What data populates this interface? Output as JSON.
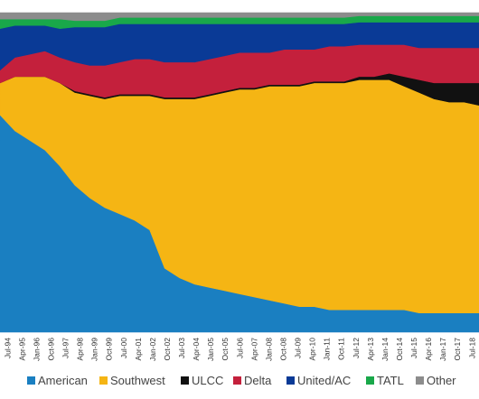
{
  "chart_data": {
    "type": "area",
    "stacked": true,
    "normalized": true,
    "title": "",
    "xlabel": "",
    "ylabel": "",
    "ylim": [
      0,
      100
    ],
    "grid": false,
    "legend_position": "bottom",
    "x": [
      "Jul-94",
      "Apr-95",
      "Jan-96",
      "Oct-96",
      "Jul-97",
      "Apr-98",
      "Jan-99",
      "Oct-99",
      "Jul-00",
      "Apr-01",
      "Jan-02",
      "Oct-02",
      "Jul-03",
      "Apr-04",
      "Jan-05",
      "Oct-05",
      "Jul-06",
      "Apr-07",
      "Jan-08",
      "Oct-08",
      "Jul-09",
      "Apr-10",
      "Jan-11",
      "Oct-11",
      "Jul-12",
      "Apr-13",
      "Jan-14",
      "Oct-14",
      "Jul-15",
      "Apr-16",
      "Jan-17",
      "Oct-17",
      "Jul-18"
    ],
    "series": [
      {
        "name": "American",
        "color": "#1a7fc1",
        "values": [
          68,
          63,
          60,
          57,
          52,
          46,
          42,
          39,
          37,
          35,
          32,
          20,
          17,
          15,
          14,
          13,
          12,
          11,
          10,
          9,
          8,
          8,
          7,
          7,
          7,
          7,
          7,
          7,
          6,
          6,
          6,
          6,
          6
        ]
      },
      {
        "name": "Southwest",
        "color": "#f5b514",
        "values": [
          10,
          17,
          20,
          23,
          26,
          29,
          32,
          34,
          37,
          39,
          42,
          53,
          56,
          58,
          60,
          62,
          64,
          65,
          67,
          68,
          69,
          70,
          71,
          71,
          72,
          72,
          72,
          70,
          69,
          67,
          66,
          66,
          65
        ]
      },
      {
        "name": "ULCC",
        "color": "#111111",
        "values": [
          0,
          0,
          0,
          0,
          0,
          0.5,
          0.5,
          0.5,
          0.5,
          0.5,
          0.5,
          0.5,
          0.5,
          0.5,
          0.5,
          0.5,
          0.5,
          0.5,
          0.5,
          0.5,
          0.5,
          0.5,
          0.5,
          0.5,
          1,
          1,
          2,
          3,
          4,
          5,
          6,
          6,
          7
        ]
      },
      {
        "name": "Delta",
        "color": "#c4203c",
        "values": [
          4,
          6,
          7,
          8,
          8,
          9,
          9,
          10,
          10,
          11,
          11,
          11,
          11,
          11,
          11,
          11,
          11,
          11,
          10,
          11,
          11,
          10,
          11,
          11,
          10,
          10,
          9,
          10,
          10,
          11,
          11,
          11,
          11
        ]
      },
      {
        "name": "United/AC",
        "color": "#0a3a96",
        "values": [
          13,
          10,
          9,
          8,
          9,
          11,
          12,
          12,
          12,
          11,
          11,
          12,
          12,
          12,
          11,
          10,
          9,
          9,
          9,
          8,
          8,
          8,
          7,
          7,
          7,
          7,
          7,
          7,
          8,
          8,
          8,
          8,
          8
        ]
      },
      {
        "name": "TATL",
        "color": "#19a84a",
        "values": [
          3,
          2,
          2,
          2,
          3,
          2,
          2,
          2,
          2,
          2,
          2,
          2,
          2,
          2,
          2,
          2,
          2,
          2,
          2,
          2,
          2,
          2,
          2,
          2,
          2,
          2,
          2,
          2,
          2,
          2,
          2,
          2,
          2
        ]
      },
      {
        "name": "Other",
        "color": "#8c8c8c",
        "values": [
          2,
          2,
          2,
          2,
          2,
          2.5,
          2.5,
          2.5,
          1.5,
          1.5,
          1.5,
          1.5,
          1.5,
          1.5,
          1.5,
          1.5,
          1.5,
          1.5,
          1.5,
          1.5,
          1.5,
          1.5,
          1.5,
          1.5,
          1,
          1,
          1,
          1,
          1,
          1,
          1,
          1,
          1
        ]
      }
    ]
  }
}
